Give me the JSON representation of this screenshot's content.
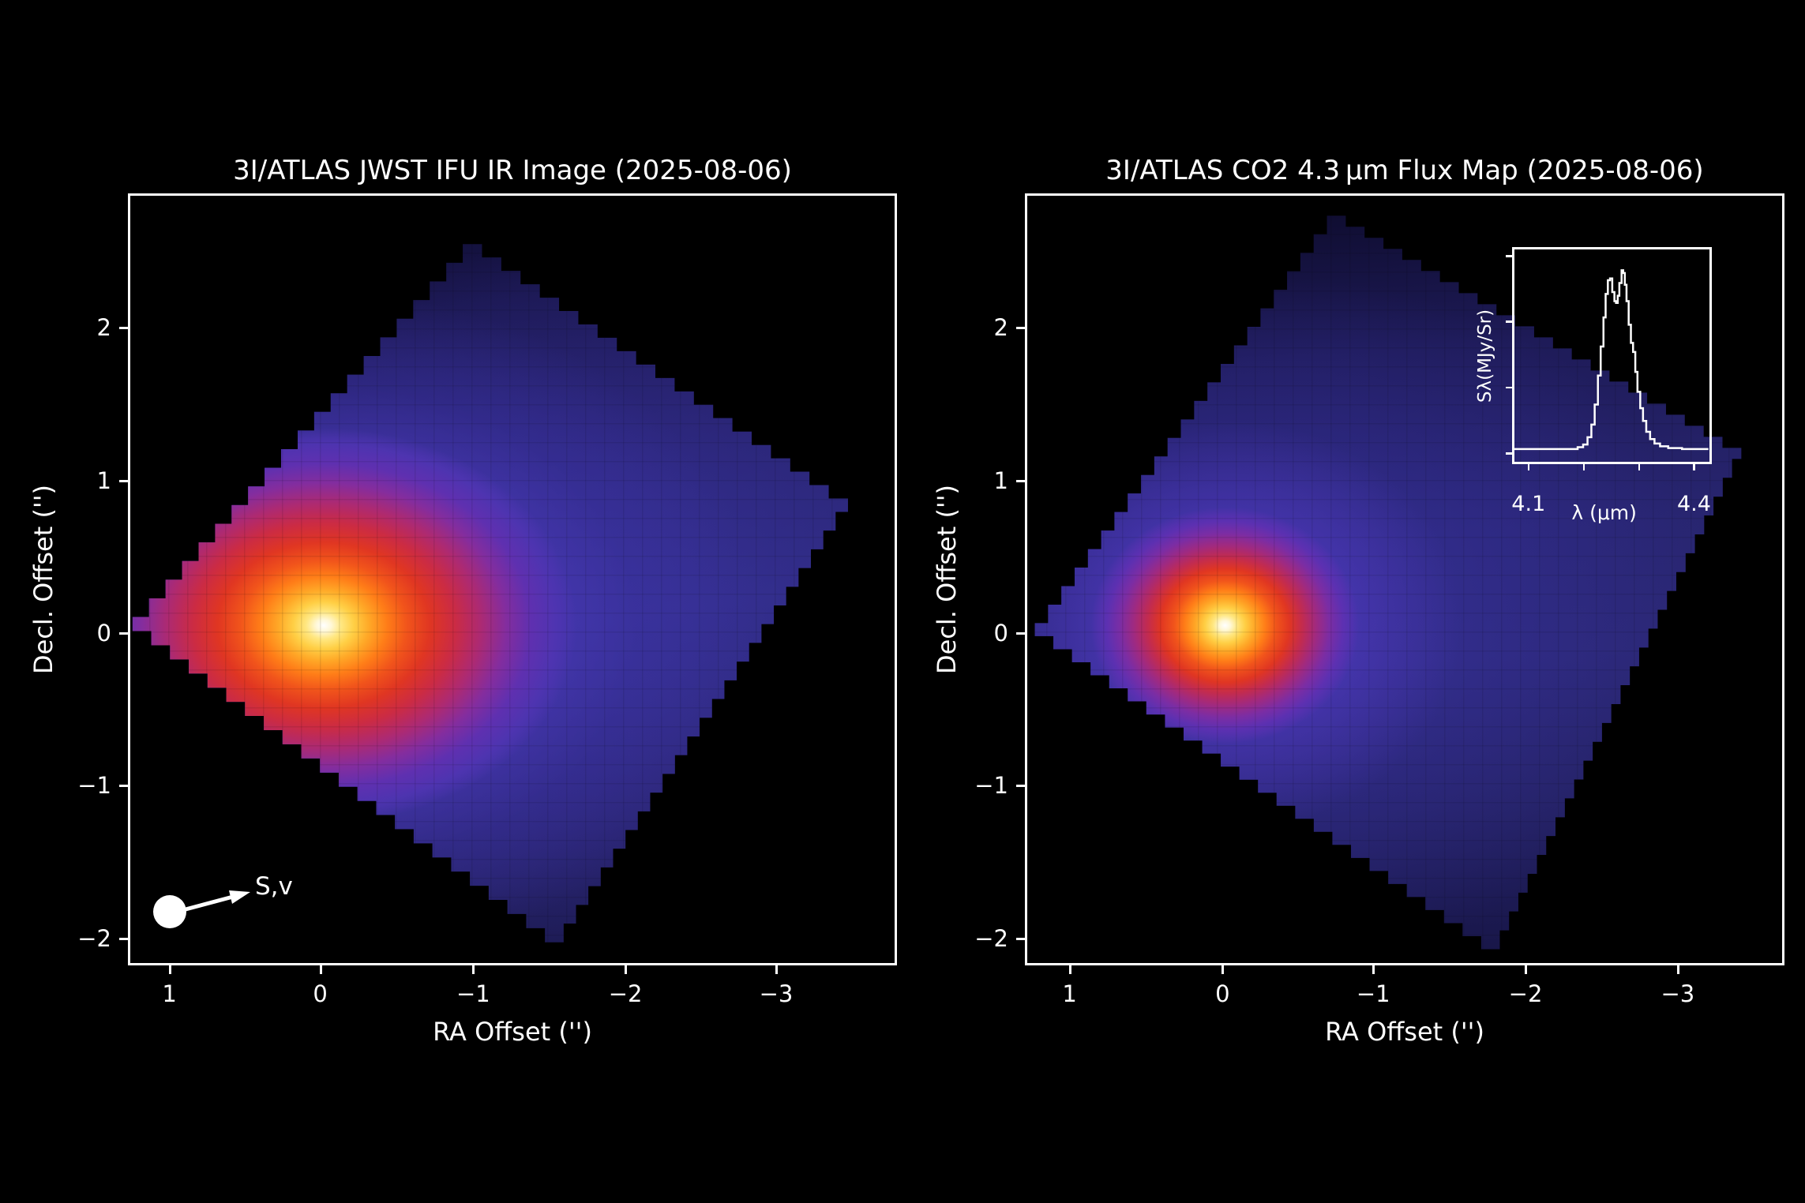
{
  "figure": {
    "background": "#000000",
    "text_color": "#ffffff"
  },
  "palette": {
    "core_white": "#ffffff",
    "yellow": "#ffd34d",
    "orange": "#ff8c1a",
    "red": "#e03120",
    "magenta": "#b02a68",
    "purple": "#6d2fa8",
    "blue": "#4637ae",
    "footprint_navy": "#262269",
    "frame": "#ffffff"
  },
  "panels": [
    {
      "title": "3I/ATLAS JWST IFU IR Image (2025-08-06)",
      "xlabel": "RA Offset ('')",
      "ylabel": "Decl. Offset ('')",
      "x_ticks": [
        "1",
        "0",
        "−1",
        "−2",
        "−3"
      ],
      "y_ticks": [
        "2",
        "1",
        "0",
        "−1",
        "−2"
      ],
      "annotation_label": "S,v"
    },
    {
      "title": "3I/ATLAS CO2 4.3 μm Flux Map (2025-08-06)",
      "xlabel": "RA Offset ('')",
      "ylabel": "Decl. Offset ('')",
      "x_ticks": [
        "1",
        "0",
        "−1",
        "−2",
        "−3"
      ],
      "y_ticks": [
        "2",
        "1",
        "0",
        "−1",
        "−2"
      ],
      "inset": {
        "ylabel": "Sλ(MJy/Sr)",
        "xlabel": "λ (μm)",
        "x_tick_labels": [
          "4.1",
          "4.4"
        ]
      }
    }
  ],
  "chart_data": [
    {
      "type": "heatmap",
      "title": "3I/ATLAS JWST IFU IR Image (2025-08-06)",
      "xlabel": "RA Offset ('')",
      "ylabel": "Decl. Offset ('')",
      "xlim": [
        1.25,
        -3.78
      ],
      "ylim": [
        -2.15,
        2.91
      ],
      "x_ticks": [
        1,
        0,
        -1,
        -2,
        -3
      ],
      "y_ticks": [
        2,
        1,
        0,
        -1,
        -2
      ],
      "peak": {
        "ra": 0.0,
        "dec": 0.0,
        "value_normalized": 1.0
      },
      "footprint_corners_radec": [
        [
          -0.94,
          2.59
        ],
        [
          -3.48,
          0.83
        ],
        [
          -1.6,
          -2.01
        ],
        [
          1.24,
          0.13
        ]
      ],
      "colormap": "black-navy-blue-purple-magenta-red-orange-yellow-white",
      "description": "Diamond-shaped IFU footprint; broad dust coma with bright nucleus region at origin, diffuse glow extending toward negative RA",
      "annotation": {
        "label": "S,v",
        "type": "sunward-velocity-arrow",
        "position_radec": [
          1.0,
          -1.78
        ]
      }
    },
    {
      "type": "heatmap",
      "title": "3I/ATLAS CO2 4.3 μm Flux Map (2025-08-06)",
      "xlabel": "RA Offset ('')",
      "ylabel": "Decl. Offset ('')",
      "xlim": [
        1.29,
        -3.69
      ],
      "ylim": [
        -2.15,
        2.91
      ],
      "x_ticks": [
        1,
        0,
        -1,
        -2,
        -3
      ],
      "y_ticks": [
        2,
        1,
        0,
        -1,
        -2
      ],
      "peak": {
        "ra": 0.0,
        "dec": 0.0,
        "value_normalized": 1.0
      },
      "footprint_corners_radec": [
        [
          -0.69,
          2.78
        ],
        [
          -3.42,
          1.18
        ],
        [
          -1.82,
          -2.05
        ],
        [
          1.24,
          0.09
        ]
      ],
      "colormap": "black-navy-blue-purple-magenta-red-orange-yellow-white",
      "description": "Same IFU footprint; compact CO2 gas coma sharply peaked at the nucleus position"
    },
    {
      "type": "line",
      "style": "steps",
      "line_color": "#ffffff",
      "ylabel": "Sλ(MJy/Sr)",
      "xlabel": "λ (μm)",
      "xlim": [
        4.075,
        4.43
      ],
      "ylim_normalized": [
        0,
        1.08
      ],
      "x_tick_values": [
        4.1,
        4.2,
        4.3,
        4.4
      ],
      "x_tick_labels_shown": [
        "4.1",
        "4.4"
      ],
      "description": "CO2 ν3 emission band with double-horned P/R branch structure centered near 4.26 μm",
      "x": [
        4.075,
        4.12,
        4.16,
        4.19,
        4.2,
        4.208,
        4.215,
        4.221,
        4.227,
        4.232,
        4.237,
        4.241,
        4.245,
        4.249,
        4.253,
        4.257,
        4.26,
        4.263,
        4.266,
        4.27,
        4.273,
        4.276,
        4.279,
        4.283,
        4.287,
        4.291,
        4.295,
        4.299,
        4.304,
        4.309,
        4.315,
        4.322,
        4.33,
        4.34,
        4.355,
        4.38,
        4.41,
        4.428
      ],
      "y": [
        0.015,
        0.015,
        0.015,
        0.025,
        0.04,
        0.08,
        0.15,
        0.26,
        0.42,
        0.58,
        0.74,
        0.87,
        0.945,
        0.955,
        0.88,
        0.83,
        0.82,
        0.86,
        0.93,
        1.0,
        0.985,
        0.92,
        0.83,
        0.7,
        0.6,
        0.55,
        0.44,
        0.33,
        0.24,
        0.17,
        0.11,
        0.07,
        0.045,
        0.03,
        0.02,
        0.015,
        0.015,
        0.015
      ]
    }
  ]
}
